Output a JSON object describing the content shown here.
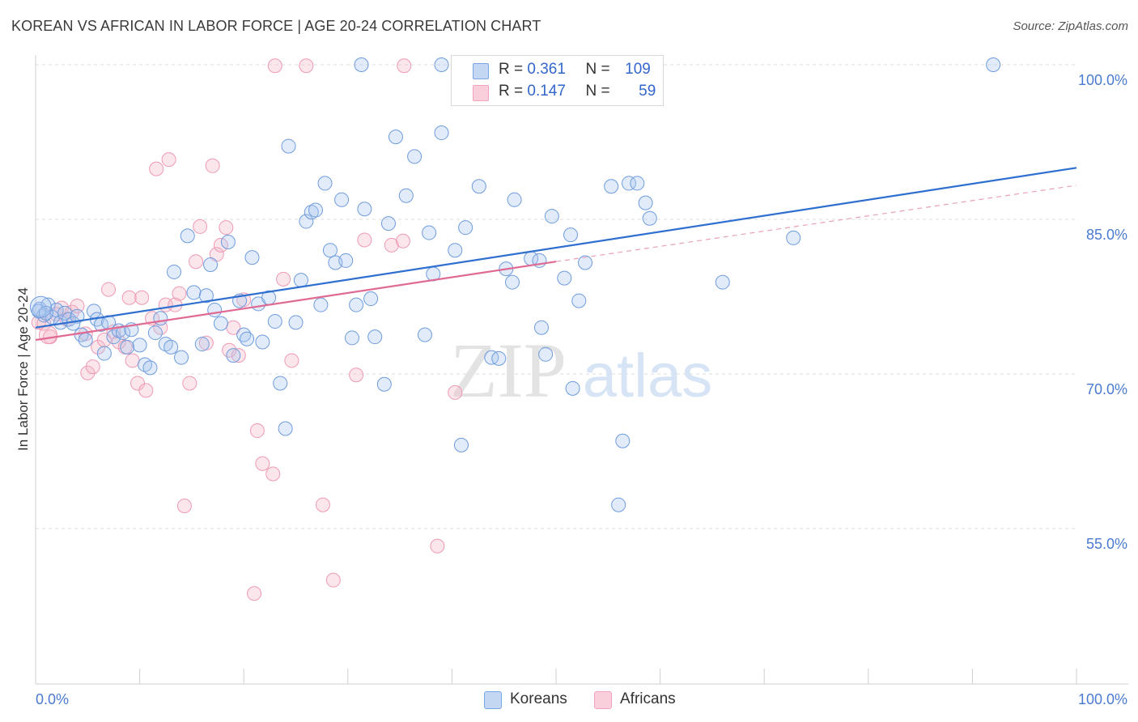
{
  "title": "KOREAN VS AFRICAN IN LABOR FORCE | AGE 20-24 CORRELATION CHART",
  "source": "Source: ZipAtlas.com",
  "watermark": {
    "zip": "ZIP",
    "atlas": "atlas"
  },
  "legend": {
    "koreans": {
      "r_label": "R =",
      "r_value": "0.361",
      "n_label": "N =",
      "n_value": "109"
    },
    "africans": {
      "r_label": "R =",
      "r_value": "0.147",
      "n_label": "N =",
      "n_value": "59"
    }
  },
  "bottom_legend": {
    "koreans": "Koreans",
    "africans": "Africans"
  },
  "colors": {
    "korean": "#7aa6e3",
    "korean_line": "#2f6fcf",
    "african": "#f2a3bb",
    "african_line": "#e06a94",
    "axis_text": "#4a7bd0"
  },
  "chart_data": {
    "type": "scatter",
    "ylabel": "In Labor Force | Age 20-24",
    "xlim": [
      0,
      100
    ],
    "ylim": [
      40,
      102
    ],
    "x_tick_labels": [
      "0.0%",
      "100.0%"
    ],
    "y_ticks": [
      55,
      70,
      85,
      100
    ],
    "y_tick_labels": [
      "55.0%",
      "70.0%",
      "85.0%",
      "100.0%"
    ],
    "grid": true,
    "series": [
      {
        "name": "Koreans",
        "color": "#7aa6e3",
        "trend": {
          "x": [
            0,
            100
          ],
          "y": [
            74.5,
            90.0
          ]
        },
        "points": [
          [
            0.4,
            76.3
          ],
          [
            0.8,
            75.7
          ],
          [
            1.2,
            76.7
          ],
          [
            1.6,
            75.5
          ],
          [
            2.0,
            76.2
          ],
          [
            2.4,
            75.0
          ],
          [
            2.8,
            75.9
          ],
          [
            3.2,
            75.3
          ],
          [
            3.6,
            74.9
          ],
          [
            4.0,
            75.6
          ],
          [
            4.4,
            73.8
          ],
          [
            4.8,
            73.3
          ],
          [
            5.6,
            76.1
          ],
          [
            5.9,
            75.3
          ],
          [
            6.3,
            74.8
          ],
          [
            6.6,
            72.0
          ],
          [
            7.0,
            75.0
          ],
          [
            7.5,
            73.6
          ],
          [
            8.0,
            74.2
          ],
          [
            8.4,
            74.0
          ],
          [
            8.8,
            72.6
          ],
          [
            9.2,
            74.3
          ],
          [
            10.0,
            72.8
          ],
          [
            10.5,
            70.9
          ],
          [
            11.0,
            70.6
          ],
          [
            11.5,
            74.0
          ],
          [
            12.0,
            75.4
          ],
          [
            12.5,
            72.9
          ],
          [
            13.0,
            72.6
          ],
          [
            13.3,
            79.9
          ],
          [
            14.0,
            71.6
          ],
          [
            14.6,
            83.4
          ],
          [
            15.2,
            77.9
          ],
          [
            16.0,
            72.9
          ],
          [
            16.4,
            77.6
          ],
          [
            16.8,
            80.6
          ],
          [
            17.2,
            76.2
          ],
          [
            17.8,
            74.9
          ],
          [
            18.5,
            82.8
          ],
          [
            19.0,
            71.8
          ],
          [
            19.6,
            77.1
          ],
          [
            20.0,
            73.8
          ],
          [
            20.3,
            73.4
          ],
          [
            20.8,
            81.3
          ],
          [
            21.4,
            76.8
          ],
          [
            21.8,
            73.1
          ],
          [
            22.4,
            77.4
          ],
          [
            23.0,
            75.1
          ],
          [
            23.5,
            69.1
          ],
          [
            24.0,
            64.7
          ],
          [
            24.3,
            92.1
          ],
          [
            25.0,
            75.0
          ],
          [
            25.5,
            79.1
          ],
          [
            26.0,
            84.8
          ],
          [
            26.5,
            85.7
          ],
          [
            26.9,
            85.9
          ],
          [
            27.4,
            76.7
          ],
          [
            27.8,
            88.5
          ],
          [
            28.3,
            82.0
          ],
          [
            28.8,
            80.8
          ],
          [
            29.4,
            86.9
          ],
          [
            29.8,
            81.0
          ],
          [
            30.4,
            73.5
          ],
          [
            30.8,
            76.7
          ],
          [
            31.6,
            86.0
          ],
          [
            32.2,
            77.3
          ],
          [
            32.6,
            73.6
          ],
          [
            33.5,
            69.0
          ],
          [
            33.9,
            84.6
          ],
          [
            34.6,
            93.0
          ],
          [
            35.6,
            87.3
          ],
          [
            36.4,
            91.1
          ],
          [
            37.4,
            73.8
          ],
          [
            37.8,
            83.7
          ],
          [
            38.2,
            79.7
          ],
          [
            39.0,
            93.4
          ],
          [
            40.3,
            82.0
          ],
          [
            40.9,
            63.1
          ],
          [
            41.3,
            84.2
          ],
          [
            42.6,
            88.2
          ],
          [
            43.8,
            71.6
          ],
          [
            44.5,
            71.5
          ],
          [
            45.2,
            80.2
          ],
          [
            45.8,
            78.9
          ],
          [
            46.0,
            86.9
          ],
          [
            47.6,
            81.2
          ],
          [
            48.4,
            81.0
          ],
          [
            48.6,
            74.5
          ],
          [
            49.0,
            71.9
          ],
          [
            49.6,
            85.3
          ],
          [
            50.8,
            79.3
          ],
          [
            51.4,
            83.5
          ],
          [
            51.6,
            68.6
          ],
          [
            52.2,
            77.1
          ],
          [
            52.8,
            80.8
          ],
          [
            55.3,
            88.2
          ],
          [
            56.4,
            63.5
          ],
          [
            56.0,
            57.3
          ],
          [
            57.0,
            88.5
          ],
          [
            57.8,
            88.5
          ],
          [
            58.6,
            86.6
          ],
          [
            59.0,
            85.1
          ],
          [
            66.0,
            78.9
          ],
          [
            72.8,
            83.2
          ],
          [
            31.3,
            100.0
          ],
          [
            39.0,
            100.0
          ],
          [
            92.0,
            100.0
          ],
          [
            0.3,
            76.1
          ],
          [
            1.0,
            75.9
          ]
        ]
      },
      {
        "name": "Africans",
        "color": "#f2a3bb",
        "trend": {
          "x": [
            0,
            50
          ],
          "y": [
            73.3,
            80.9
          ]
        },
        "trend_dashed": {
          "x": [
            50,
            100
          ],
          "y": [
            80.9,
            88.3
          ]
        },
        "points": [
          [
            0.3,
            75.0
          ],
          [
            0.8,
            74.9
          ],
          [
            1.4,
            73.6
          ],
          [
            2.0,
            75.8
          ],
          [
            2.5,
            76.4
          ],
          [
            3.0,
            75.3
          ],
          [
            3.5,
            76.0
          ],
          [
            4.0,
            76.6
          ],
          [
            4.8,
            73.9
          ],
          [
            5.0,
            70.1
          ],
          [
            5.5,
            70.7
          ],
          [
            6.0,
            72.6
          ],
          [
            6.6,
            73.3
          ],
          [
            7.0,
            78.2
          ],
          [
            7.5,
            74.1
          ],
          [
            8.0,
            73.1
          ],
          [
            8.6,
            72.6
          ],
          [
            9.0,
            77.4
          ],
          [
            9.3,
            71.3
          ],
          [
            9.8,
            69.1
          ],
          [
            10.2,
            77.4
          ],
          [
            10.6,
            68.4
          ],
          [
            11.2,
            75.4
          ],
          [
            11.6,
            89.9
          ],
          [
            12.0,
            74.5
          ],
          [
            12.5,
            76.7
          ],
          [
            12.8,
            90.8
          ],
          [
            13.4,
            76.7
          ],
          [
            13.8,
            77.8
          ],
          [
            14.3,
            57.2
          ],
          [
            14.8,
            69.1
          ],
          [
            15.4,
            80.9
          ],
          [
            15.8,
            84.3
          ],
          [
            16.4,
            73.0
          ],
          [
            17.0,
            90.2
          ],
          [
            17.4,
            81.6
          ],
          [
            17.8,
            82.5
          ],
          [
            18.3,
            84.2
          ],
          [
            18.6,
            72.3
          ],
          [
            19.0,
            74.5
          ],
          [
            19.5,
            71.8
          ],
          [
            20.0,
            77.2
          ],
          [
            21.0,
            48.7
          ],
          [
            21.3,
            64.5
          ],
          [
            21.8,
            61.3
          ],
          [
            22.8,
            60.3
          ],
          [
            23.0,
            99.9
          ],
          [
            23.8,
            79.2
          ],
          [
            24.6,
            71.3
          ],
          [
            26.0,
            99.9
          ],
          [
            27.6,
            57.3
          ],
          [
            28.6,
            50.0
          ],
          [
            30.8,
            69.9
          ],
          [
            31.6,
            83.0
          ],
          [
            34.2,
            82.5
          ],
          [
            35.3,
            82.9
          ],
          [
            35.4,
            99.9
          ],
          [
            38.6,
            53.3
          ],
          [
            40.3,
            68.2
          ]
        ]
      }
    ]
  }
}
